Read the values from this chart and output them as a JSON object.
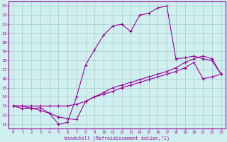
{
  "xlabel": "Windchill (Refroidissement éolien,°C)",
  "background_color": "#d0f0f0",
  "line_color": "#990099",
  "grid_color": "#aacccc",
  "xlim": [
    -0.5,
    23.5
  ],
  "ylim": [
    10.5,
    24.5
  ],
  "xticks": [
    0,
    1,
    2,
    3,
    4,
    5,
    6,
    7,
    8,
    9,
    10,
    11,
    12,
    13,
    14,
    15,
    16,
    17,
    18,
    19,
    20,
    21,
    22,
    23
  ],
  "yticks": [
    11,
    12,
    13,
    14,
    15,
    16,
    17,
    18,
    19,
    20,
    21,
    22,
    23,
    24
  ],
  "curve1_x": [
    0,
    1,
    2,
    3,
    4,
    5,
    6,
    7,
    8,
    9,
    10,
    11,
    12,
    13,
    14,
    15,
    16,
    17,
    18,
    19,
    20,
    21,
    22,
    23
  ],
  "curve1_y": [
    13.0,
    13.0,
    12.7,
    12.8,
    12.2,
    11.0,
    11.2,
    14.0,
    17.5,
    19.2,
    20.8,
    21.8,
    22.0,
    21.2,
    23.0,
    23.2,
    23.8,
    24.0,
    18.2,
    18.3,
    18.5,
    18.2,
    18.0,
    16.5
  ],
  "curve2_x": [
    0,
    1,
    2,
    3,
    4,
    5,
    6,
    7,
    8,
    9,
    10,
    11,
    12,
    13,
    14,
    15,
    16,
    17,
    18,
    19,
    20,
    21,
    22,
    23
  ],
  "curve2_y": [
    13.0,
    13.0,
    13.0,
    13.0,
    13.0,
    13.0,
    13.0,
    13.2,
    13.5,
    14.0,
    14.5,
    15.0,
    15.3,
    15.6,
    15.9,
    16.2,
    16.5,
    16.8,
    17.2,
    17.8,
    18.2,
    18.5,
    18.2,
    16.5
  ],
  "curve3_x": [
    0,
    1,
    2,
    3,
    4,
    5,
    6,
    7,
    8,
    9,
    10,
    11,
    12,
    13,
    14,
    15,
    16,
    17,
    18,
    19,
    20,
    21,
    22,
    23
  ],
  "curve3_y": [
    13.0,
    12.7,
    12.8,
    12.5,
    12.2,
    11.8,
    11.6,
    11.5,
    13.5,
    14.0,
    14.3,
    14.6,
    15.0,
    15.3,
    15.6,
    15.9,
    16.2,
    16.5,
    16.8,
    17.2,
    17.8,
    16.0,
    16.2,
    16.5
  ]
}
